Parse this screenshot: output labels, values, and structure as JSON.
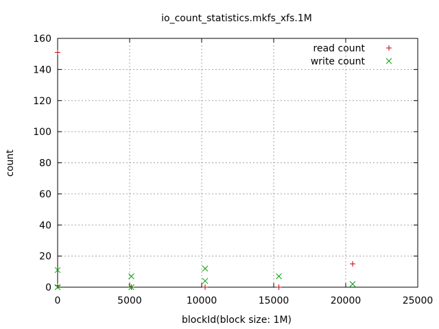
{
  "chart_data": {
    "type": "scatter",
    "title": "io_count_statistics.mkfs_xfs.1M",
    "xlabel": "blockId(block size: 1M)",
    "ylabel": "count",
    "xlim": [
      0,
      25000
    ],
    "ylim": [
      0,
      160
    ],
    "x_ticks": [
      0,
      5000,
      10000,
      15000,
      20000,
      25000
    ],
    "y_ticks": [
      0,
      20,
      40,
      60,
      80,
      100,
      120,
      140,
      160
    ],
    "grid": true,
    "legend": "top-right",
    "series": [
      {
        "name": "read count",
        "marker": "plus",
        "color": "#c00000",
        "points": [
          {
            "x": 0,
            "y": 151
          },
          {
            "x": 0,
            "y": 1
          },
          {
            "x": 5120,
            "y": 0
          },
          {
            "x": 10240,
            "y": 0
          },
          {
            "x": 15360,
            "y": 0
          },
          {
            "x": 20480,
            "y": 15
          }
        ]
      },
      {
        "name": "write count",
        "marker": "cross",
        "color": "#00a000",
        "points": [
          {
            "x": 0,
            "y": 11
          },
          {
            "x": 0,
            "y": 0
          },
          {
            "x": 5120,
            "y": 7
          },
          {
            "x": 5120,
            "y": 0
          },
          {
            "x": 10240,
            "y": 12
          },
          {
            "x": 10240,
            "y": 4
          },
          {
            "x": 15360,
            "y": 7
          },
          {
            "x": 20480,
            "y": 2
          }
        ]
      }
    ]
  }
}
